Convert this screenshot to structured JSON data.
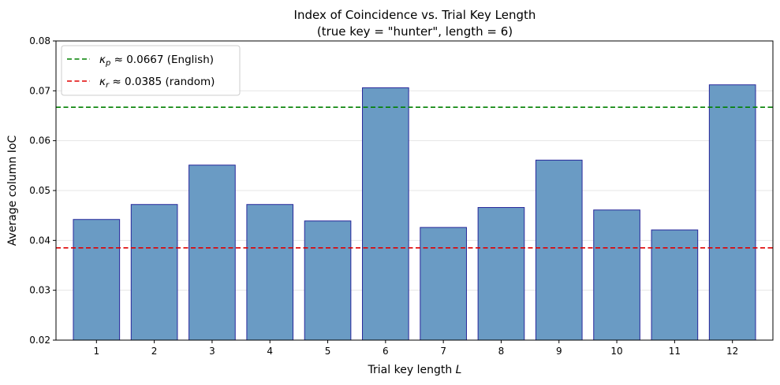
{
  "chart_data": {
    "type": "bar",
    "title": "Index of Coincidence vs. Trial Key Length",
    "subtitle": "(true key = \"hunter\", length = 6)",
    "xlabel": "Trial key length L",
    "ylabel": "Average column IoC",
    "categories": [
      "1",
      "2",
      "3",
      "4",
      "5",
      "6",
      "7",
      "8",
      "9",
      "10",
      "11",
      "12"
    ],
    "values": [
      0.0442,
      0.0472,
      0.0551,
      0.0472,
      0.0439,
      0.0706,
      0.0426,
      0.0466,
      0.0561,
      0.0461,
      0.0421,
      0.0712
    ],
    "ylim": [
      0.02,
      0.08
    ],
    "yticks": [
      "0.02",
      "0.03",
      "0.04",
      "0.05",
      "0.06",
      "0.07",
      "0.08"
    ],
    "grid": "horizontal",
    "bar_color": "#6a9bc4",
    "bar_edge_color": "#27279a",
    "reference_lines": [
      {
        "symbol": "κ",
        "subscript": "p",
        "value": 0.0667,
        "label": " ≈ 0.0667 (English)",
        "color": "#008000"
      },
      {
        "symbol": "κ",
        "subscript": "r",
        "value": 0.0385,
        "label": " ≈ 0.0385 (random)",
        "color": "#e00000"
      }
    ],
    "legend_placement": "top-left"
  }
}
